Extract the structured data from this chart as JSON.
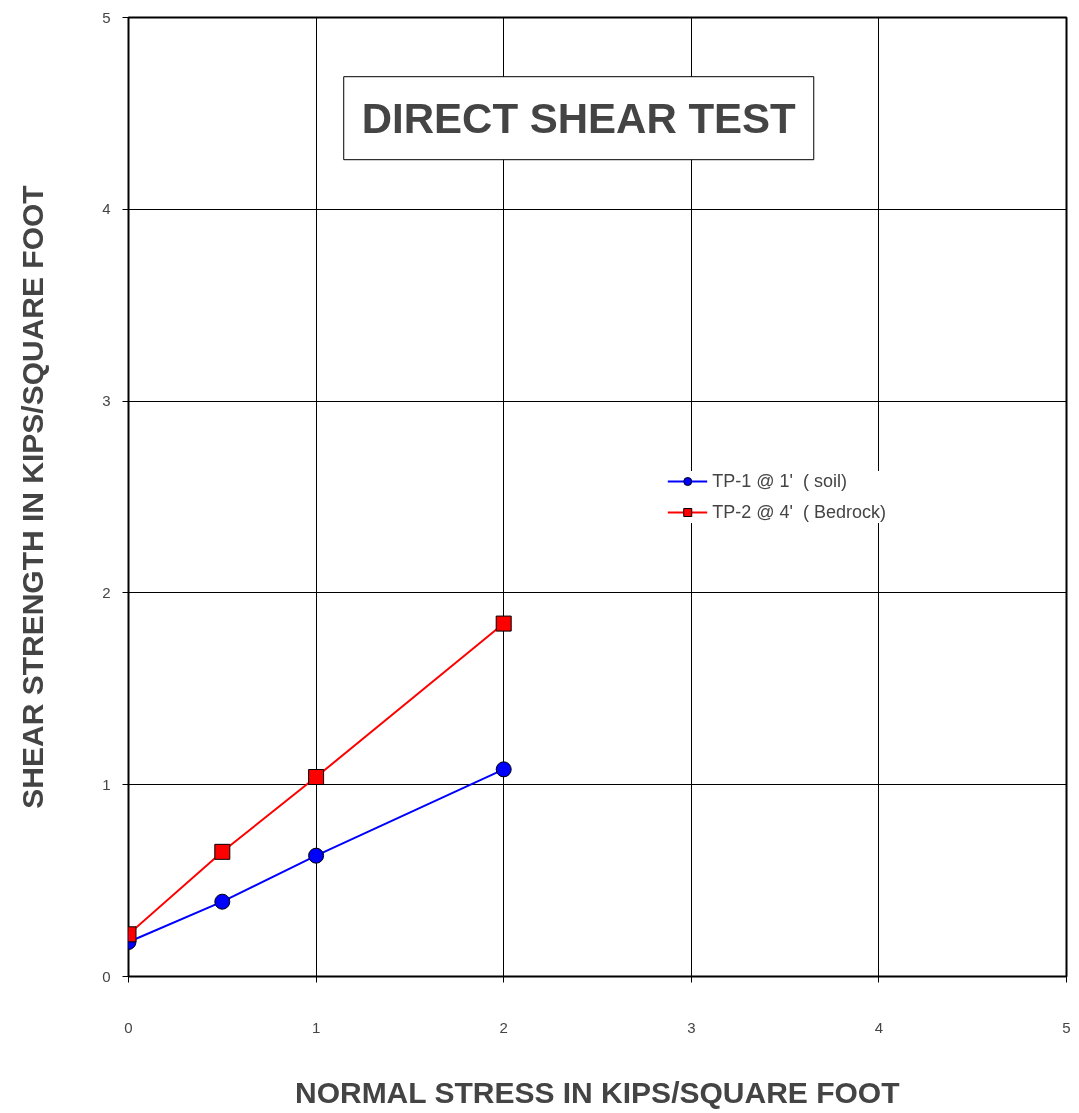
{
  "chart_data": {
    "type": "line",
    "title": "DIRECT SHEAR TEST",
    "xlabel": "NORMAL STRESS IN KIPS/SQUARE FOOT",
    "ylabel": "SHEAR STRENGTH IN KIPS/SQUARE FOOT",
    "x": [
      0,
      0.5,
      1,
      2
    ],
    "series": [
      {
        "name": "TP-1 @ 1'  ( soil)",
        "color": "#0000ff",
        "marker": "circle",
        "values": [
          0.18,
          0.39,
          0.63,
          1.08
        ]
      },
      {
        "name": "TP-2 @ 4'  ( Bedrock)",
        "color": "#ff0000",
        "marker": "square",
        "values": [
          0.22,
          0.65,
          1.04,
          1.84
        ]
      }
    ],
    "xlim": [
      0,
      5
    ],
    "ylim": [
      0,
      5
    ],
    "xticks": [
      0,
      1,
      2,
      3,
      4,
      5
    ],
    "yticks": [
      0,
      1,
      2,
      3,
      4,
      5
    ],
    "grid": true,
    "legend": "right",
    "line_style": "solid"
  }
}
